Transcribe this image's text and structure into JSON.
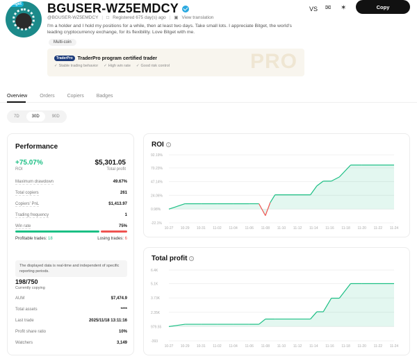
{
  "header": {
    "avatar_badge": "Bitget",
    "name": "BGUSER-WZ5EMDCY",
    "handle": "@BGUSER-WZ5EMDCY",
    "registered": "Registered 675 day(s) ago",
    "view_translation": "View translation",
    "bio": "I'm a holder and I hold my positions for a while, then at least two days. Take small lots. I appreciate Bitget, the world's leading cryptocurrency exchange, for its flexibility. Love Bitget with me.",
    "tag": "Multi-coin",
    "vs_label": "VS",
    "copy_label": "Copy"
  },
  "traderpro": {
    "logo": "TraderPro",
    "title": "TraderPro program certified trader",
    "features": [
      "Stable trading behavior",
      "High win rate",
      "Good risk control"
    ],
    "watermark": "PRO"
  },
  "tabs": [
    "Overview",
    "Orders",
    "Copiers",
    "Badges"
  ],
  "periods": [
    "7D",
    "30D",
    "90D"
  ],
  "performance": {
    "title": "Performance",
    "roi_value": "+75.07%",
    "roi_label": "ROI",
    "profit_value": "$5,301.05",
    "profit_label": "Total profit",
    "rows": [
      {
        "k": "Maximum drawdown",
        "v": "49.67%"
      },
      {
        "k": "Total copiers",
        "v": "261"
      },
      {
        "k": "Copiers' PnL",
        "v": "$1,413.97"
      },
      {
        "k": "Trading frequency",
        "v": "1"
      },
      {
        "k": "Win rate",
        "v": "75%"
      }
    ],
    "win_rate_fraction": 0.75,
    "profitable_label": "Profitable trades:",
    "profitable_value": "18",
    "losing_label": "Losing trades:",
    "losing_value": "6",
    "note": "The displayed data is real-time and independent of specific reporting periods.",
    "copiers_value": "198/750",
    "copiers_label": "Currently copying",
    "rows2": [
      {
        "k": "AUM",
        "v": "$7,474.9"
      },
      {
        "k": "Total assets",
        "v": "****"
      },
      {
        "k": "Last trade",
        "v": "2025/11/18 13:11:16"
      },
      {
        "k": "Profit share ratio",
        "v": "10%"
      },
      {
        "k": "Watchers",
        "v": "3,149"
      }
    ]
  },
  "chart_data": [
    {
      "type": "area",
      "title": "ROI",
      "yticks": [
        "92.19%",
        "70.23%",
        "47.14%",
        "24.06%",
        "0.98%",
        "-22.1%"
      ],
      "ytick_values": [
        92.19,
        70.23,
        47.14,
        24.06,
        0.98,
        -22.1
      ],
      "xticks": [
        "10-27",
        "10-29",
        "10-31",
        "11-02",
        "11-04",
        "11-06",
        "11-08",
        "11-10",
        "11-12",
        "11-14",
        "11-16",
        "11-18",
        "11-20",
        "11-22",
        "11-24"
      ],
      "x": [
        0,
        1,
        2,
        3,
        4,
        5,
        5.6,
        6.0,
        6.3,
        6.6,
        8.8,
        9.2,
        9.6,
        10.1,
        10.6,
        11.3,
        12.0,
        14.0
      ],
      "y": [
        0.98,
        10,
        10,
        10,
        10,
        10,
        10,
        -10,
        12,
        25,
        25,
        40,
        48,
        48,
        55,
        75,
        75,
        75
      ],
      "color_up": "#1bbf84",
      "color_down": "#ef5350"
    },
    {
      "type": "area",
      "title": "Total profit",
      "yticks": [
        "6.4K",
        "5.1K",
        "3.73K",
        "2.35K",
        "979.55",
        "-393"
      ],
      "ytick_values": [
        6400,
        5100,
        3730,
        2350,
        979.55,
        -393
      ],
      "xticks": [
        "10-27",
        "10-29",
        "10-31",
        "11-02",
        "11-04",
        "11-06",
        "11-08",
        "11-10",
        "11-12",
        "11-14",
        "11-16",
        "11-18",
        "11-20",
        "11-22",
        "11-24"
      ],
      "x": [
        0,
        1,
        2,
        3,
        4,
        5,
        5.6,
        6.0,
        6.6,
        8.8,
        9.2,
        9.6,
        10.1,
        10.6,
        11.3,
        12.0,
        14.0
      ],
      "y": [
        979.55,
        1200,
        1200,
        1200,
        1200,
        1200,
        1200,
        1700,
        1700,
        1700,
        2400,
        2400,
        3700,
        3700,
        5100,
        5100,
        5100
      ],
      "color_up": "#1bbf84"
    }
  ]
}
